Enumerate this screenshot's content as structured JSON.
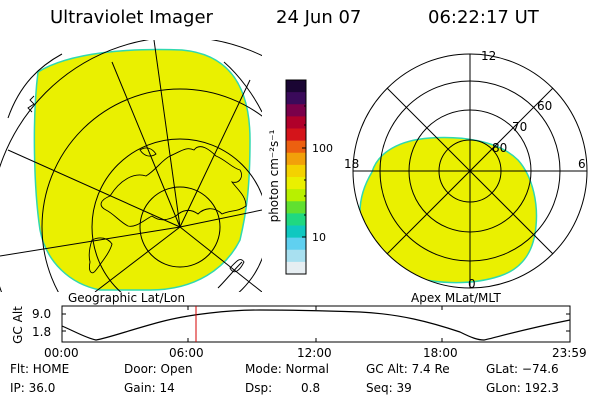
{
  "header": {
    "instrument": "Ultraviolet Imager",
    "date": "24 Jun 07",
    "time": "06:22:17 UT"
  },
  "geo_panel": {
    "label": "Geographic Lat/Lon"
  },
  "colorbar": {
    "unit_label": "photon cm⁻²s⁻¹",
    "ticks": [
      "100",
      "10"
    ],
    "colors": [
      "#1a0533",
      "#3a0a5a",
      "#7a004a",
      "#b0002a",
      "#d4141a",
      "#ec6010",
      "#f2a00a",
      "#f4d200",
      "#eaf000",
      "#b8f000",
      "#60e030",
      "#20d880",
      "#10c8c0",
      "#60d0f0",
      "#a8e0f0",
      "#e6eef2"
    ]
  },
  "polar_panel": {
    "label": "Apex MLat/MLT",
    "mlt_labels": {
      "top": "12",
      "left": "18",
      "right": "6",
      "bottom": "0"
    },
    "lat_labels": [
      "60",
      "70",
      "80"
    ]
  },
  "altitude_plot": {
    "ylabel": "GC Alt",
    "yticks": [
      "9.0",
      "1.8"
    ],
    "xticks": [
      "00:00",
      "06:00",
      "12:00",
      "18:00",
      "23:59"
    ]
  },
  "info": {
    "flt": "Flt: HOME",
    "ip": "IP: 36.0",
    "door": "Door: Open",
    "gain": "Gain: 14",
    "mode": "Mode: Normal",
    "dsp_label": "Dsp:",
    "dsp_value": "0.8",
    "gc_alt": "GC Alt: 7.4 Re",
    "seq": "Seq: 39",
    "glat": "GLat: −74.6",
    "glon": "GLon: 192.3"
  },
  "colors": {
    "emission": "#eaf000",
    "emission_edge": "#30d8b0",
    "marker": "#d40000"
  }
}
